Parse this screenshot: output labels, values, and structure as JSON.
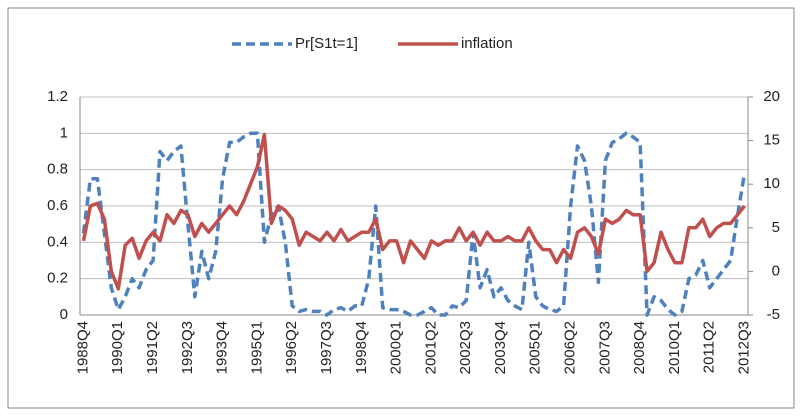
{
  "chart_data": {
    "type": "line",
    "categories": [
      "1988Q4",
      null,
      null,
      null,
      null,
      "1990Q1",
      null,
      null,
      null,
      null,
      "1991Q2",
      null,
      null,
      null,
      null,
      "1992Q3",
      null,
      null,
      null,
      null,
      "1993Q4",
      null,
      null,
      null,
      null,
      "1995Q1",
      null,
      null,
      null,
      null,
      "1996Q2",
      null,
      null,
      null,
      null,
      "1997Q3",
      null,
      null,
      null,
      null,
      "1998Q4",
      null,
      null,
      null,
      null,
      "2000Q1",
      null,
      null,
      null,
      null,
      "2001Q2",
      null,
      null,
      null,
      null,
      "2002Q3",
      null,
      null,
      null,
      null,
      "2003Q4",
      null,
      null,
      null,
      null,
      "2005Q1",
      null,
      null,
      null,
      null,
      "2006Q2",
      null,
      null,
      null,
      null,
      "2007Q3",
      null,
      null,
      null,
      null,
      "2008Q4",
      null,
      null,
      null,
      null,
      "2010Q1",
      null,
      null,
      null,
      null,
      "2011Q2",
      null,
      null,
      null,
      null,
      "2012Q3"
    ],
    "series": [
      {
        "name": "Pr[S1t=1]",
        "color": "#4f81bd",
        "dashed": true,
        "axis": "y",
        "values": [
          0.45,
          0.75,
          0.75,
          0.45,
          0.15,
          0.03,
          0.1,
          0.2,
          0.15,
          0.25,
          0.3,
          0.9,
          0.85,
          0.9,
          0.93,
          0.5,
          0.1,
          0.35,
          0.2,
          0.35,
          0.75,
          0.95,
          0.95,
          0.98,
          1.0,
          1.0,
          0.4,
          0.55,
          0.6,
          0.4,
          0.05,
          0.02,
          0.03,
          0.02,
          0.02,
          0.0,
          0.03,
          0.04,
          0.02,
          0.05,
          0.05,
          0.2,
          0.6,
          0.04,
          0.03,
          0.03,
          0.02,
          0.0,
          0.0,
          0.02,
          0.04,
          0.0,
          0.0,
          0.05,
          0.04,
          0.08,
          0.45,
          0.15,
          0.25,
          0.1,
          0.15,
          0.08,
          0.05,
          0.03,
          0.4,
          0.1,
          0.05,
          0.03,
          0.02,
          0.05,
          0.6,
          0.93,
          0.85,
          0.6,
          0.18,
          0.85,
          0.95,
          0.97,
          1.0,
          0.98,
          0.95,
          0.0,
          0.1,
          0.08,
          0.03,
          0.0,
          0.02,
          0.2,
          0.22,
          0.3,
          0.15,
          0.2,
          0.25,
          0.3,
          0.55,
          0.78
        ]
      },
      {
        "name": "inflation",
        "color": "#c0504d",
        "dashed": false,
        "axis": "y2",
        "values": [
          3.5,
          7.5,
          7.8,
          6,
          0,
          -2,
          3,
          3.8,
          1.5,
          3.5,
          4.5,
          3.5,
          6.5,
          5.5,
          7,
          6.5,
          4,
          5.5,
          4.5,
          5.5,
          6.5,
          7.5,
          6.5,
          8,
          10,
          12,
          15.7,
          5.5,
          7.5,
          7,
          6,
          3,
          4.5,
          4,
          3.5,
          4.5,
          3.5,
          4.8,
          3.5,
          4,
          4.5,
          4.5,
          6,
          2.5,
          3.5,
          3.5,
          1,
          3.5,
          2.5,
          1.5,
          3.5,
          3,
          3.5,
          3.5,
          5,
          3.5,
          4.5,
          3,
          4.5,
          3.5,
          3.5,
          4,
          3.5,
          3.5,
          5,
          3.5,
          2.5,
          2.5,
          1,
          2.5,
          1.5,
          4.5,
          5,
          4,
          2,
          6,
          5.5,
          6,
          7,
          6.5,
          6.5,
          0,
          1,
          4.5,
          2.5,
          1,
          1,
          5,
          5,
          6,
          4,
          5,
          5.5,
          5.5,
          6.5,
          7.5
        ]
      }
    ],
    "ylim": [
      0,
      1.2
    ],
    "yticks": [
      0,
      0.2,
      0.4,
      0.6,
      0.8,
      1,
      1.2
    ],
    "y2lim": [
      -5,
      20
    ],
    "y2ticks": [
      -5,
      0,
      5,
      10,
      15,
      20
    ],
    "grid": true,
    "legend": "top"
  }
}
